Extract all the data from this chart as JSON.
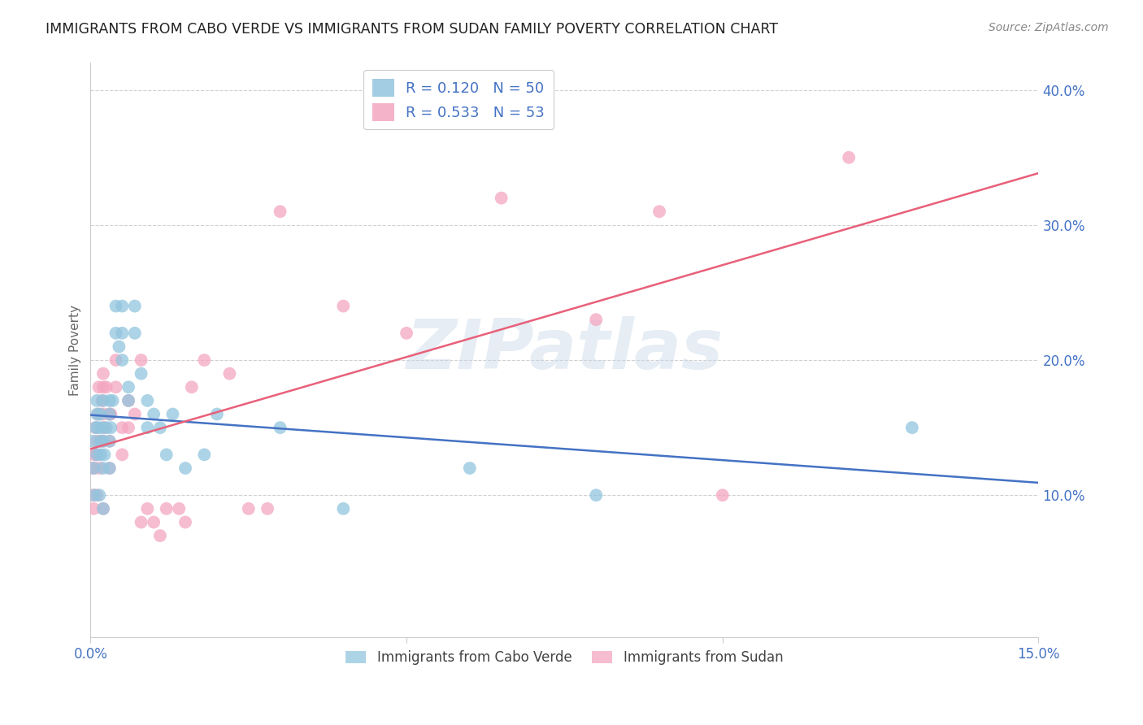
{
  "title": "IMMIGRANTS FROM CABO VERDE VS IMMIGRANTS FROM SUDAN FAMILY POVERTY CORRELATION CHART",
  "source": "Source: ZipAtlas.com",
  "ylabel": "Family Poverty",
  "xlim": [
    0.0,
    0.15
  ],
  "ylim": [
    -0.005,
    0.42
  ],
  "xticks": [
    0.0,
    0.05,
    0.1,
    0.15
  ],
  "xtick_labels": [
    "0.0%",
    "",
    "",
    "15.0%"
  ],
  "yticks": [
    0.1,
    0.2,
    0.3,
    0.4
  ],
  "ytick_labels": [
    "10.0%",
    "20.0%",
    "30.0%",
    "40.0%"
  ],
  "cabo_verde_color": "#92c5de",
  "sudan_color": "#f4a6c0",
  "cabo_verde_label": "Immigrants from Cabo Verde",
  "sudan_label": "Immigrants from Sudan",
  "cabo_R": "0.120",
  "cabo_N": "50",
  "sudan_R": "0.533",
  "sudan_N": "53",
  "regression_color_cabo": "#4472c4",
  "regression_color_sudan": "#e8607a",
  "watermark": "ZIPatlas",
  "cabo_verde_x": [
    0.0004,
    0.0005,
    0.0006,
    0.0008,
    0.001,
    0.001,
    0.001,
    0.0012,
    0.0014,
    0.0015,
    0.0015,
    0.0016,
    0.0018,
    0.002,
    0.002,
    0.002,
    0.002,
    0.0022,
    0.0025,
    0.003,
    0.003,
    0.003,
    0.003,
    0.0032,
    0.0035,
    0.004,
    0.004,
    0.0045,
    0.005,
    0.005,
    0.005,
    0.006,
    0.006,
    0.007,
    0.007,
    0.008,
    0.009,
    0.009,
    0.01,
    0.011,
    0.012,
    0.013,
    0.015,
    0.018,
    0.02,
    0.03,
    0.04,
    0.06,
    0.08,
    0.13
  ],
  "cabo_verde_y": [
    0.14,
    0.12,
    0.1,
    0.15,
    0.17,
    0.16,
    0.13,
    0.15,
    0.1,
    0.14,
    0.16,
    0.13,
    0.15,
    0.17,
    0.14,
    0.12,
    0.09,
    0.13,
    0.15,
    0.17,
    0.16,
    0.14,
    0.12,
    0.15,
    0.17,
    0.22,
    0.24,
    0.21,
    0.24,
    0.22,
    0.2,
    0.18,
    0.17,
    0.24,
    0.22,
    0.19,
    0.17,
    0.15,
    0.16,
    0.15,
    0.13,
    0.16,
    0.12,
    0.13,
    0.16,
    0.15,
    0.09,
    0.12,
    0.1,
    0.15
  ],
  "sudan_x": [
    0.0003,
    0.0004,
    0.0005,
    0.0006,
    0.0007,
    0.0008,
    0.001,
    0.001,
    0.001,
    0.0012,
    0.0013,
    0.0015,
    0.0016,
    0.0018,
    0.002,
    0.002,
    0.002,
    0.002,
    0.002,
    0.0022,
    0.0025,
    0.003,
    0.003,
    0.003,
    0.0032,
    0.004,
    0.004,
    0.005,
    0.005,
    0.006,
    0.006,
    0.007,
    0.008,
    0.008,
    0.009,
    0.01,
    0.011,
    0.012,
    0.014,
    0.015,
    0.016,
    0.018,
    0.022,
    0.025,
    0.028,
    0.03,
    0.04,
    0.05,
    0.065,
    0.08,
    0.09,
    0.1,
    0.12
  ],
  "sudan_y": [
    0.12,
    0.1,
    0.09,
    0.13,
    0.12,
    0.15,
    0.14,
    0.13,
    0.1,
    0.16,
    0.18,
    0.12,
    0.14,
    0.17,
    0.19,
    0.18,
    0.16,
    0.14,
    0.09,
    0.15,
    0.18,
    0.16,
    0.14,
    0.12,
    0.16,
    0.2,
    0.18,
    0.15,
    0.13,
    0.17,
    0.15,
    0.16,
    0.2,
    0.08,
    0.09,
    0.08,
    0.07,
    0.09,
    0.09,
    0.08,
    0.18,
    0.2,
    0.19,
    0.09,
    0.09,
    0.31,
    0.24,
    0.22,
    0.32,
    0.23,
    0.31,
    0.1,
    0.35
  ],
  "background_color": "#ffffff",
  "grid_color": "#d0d0d0",
  "axis_color": "#4472c4",
  "ylabel_color": "#666666",
  "title_color": "#222222",
  "source_color": "#888888"
}
